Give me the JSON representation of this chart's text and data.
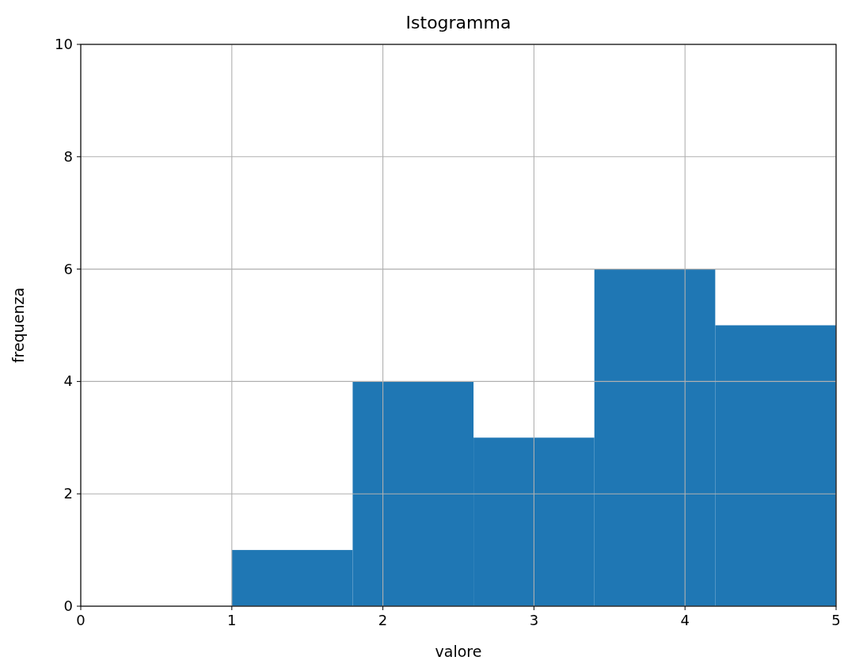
{
  "chart_data": {
    "type": "histogram",
    "title": "Istogramma",
    "xlabel": "valore",
    "ylabel": "frequenza",
    "bins": [
      1,
      1.8,
      2.6,
      3.4,
      4.2,
      5
    ],
    "values": [
      1,
      4,
      3,
      6,
      5
    ],
    "color": "#1f77b4",
    "xlim": [
      0,
      5
    ],
    "xticks": [
      0,
      1,
      2,
      3,
      4,
      5
    ],
    "ylim": [
      0,
      10
    ],
    "yticks": [
      0,
      2,
      4,
      6,
      8,
      10
    ],
    "grid": true
  }
}
